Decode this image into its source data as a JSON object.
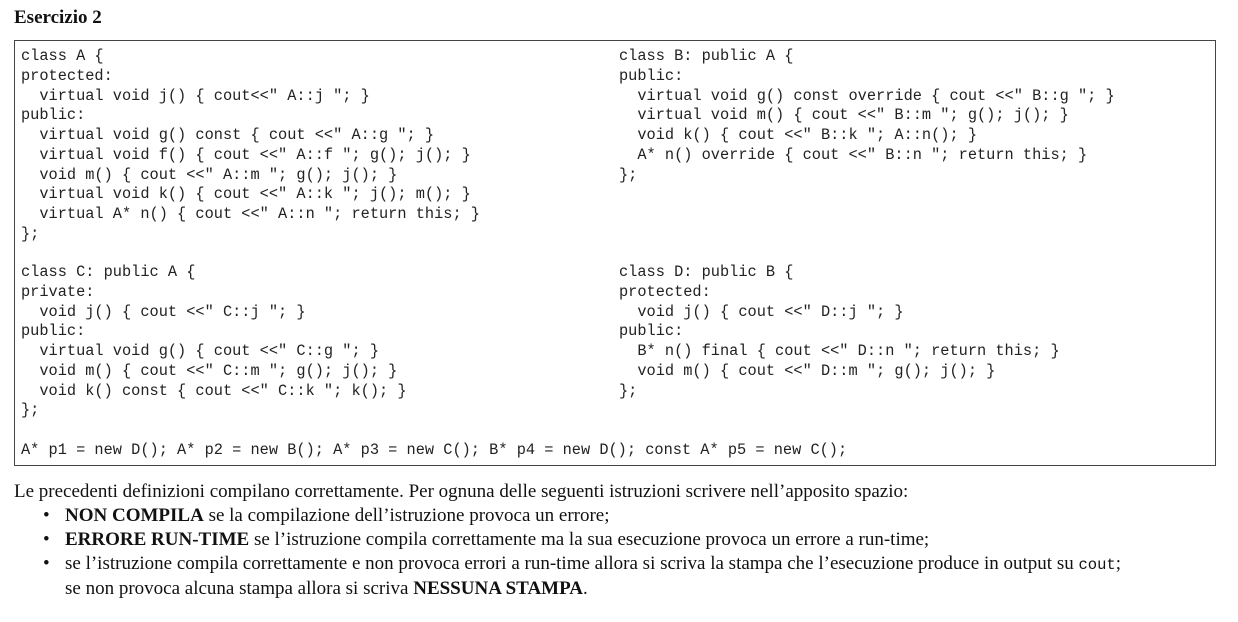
{
  "title": "Esercizio 2",
  "code": {
    "class_a": [
      "class A {",
      "protected:",
      "  virtual void j() { cout<<\" A::j \"; }",
      "public:",
      "  virtual void g() const { cout <<\" A::g \"; }",
      "  virtual void f() { cout <<\" A::f \"; g(); j(); }",
      "  void m() { cout <<\" A::m \"; g(); j(); }",
      "  virtual void k() { cout <<\" A::k \"; j(); m(); }",
      "  virtual A* n() { cout <<\" A::n \"; return this; }",
      "};"
    ],
    "class_b": [
      "class B: public A {",
      "public:",
      "  virtual void g() const override { cout <<\" B::g \"; }",
      "  virtual void m() { cout <<\" B::m \"; g(); j(); }",
      "  void k() { cout <<\" B::k \"; A::n(); }",
      "  A* n() override { cout <<\" B::n \"; return this; }",
      "};"
    ],
    "class_c": [
      "class C: public A {",
      "private:",
      "  void j() { cout <<\" C::j \"; }",
      "public:",
      "  virtual void g() { cout <<\" C::g \"; }",
      "  void m() { cout <<\" C::m \"; g(); j(); }",
      "  void k() const { cout <<\" C::k \"; k(); }",
      "};"
    ],
    "class_d": [
      "class D: public B {",
      "protected:",
      "  void j() { cout <<\" D::j \"; }",
      "public:",
      "  B* n() final { cout <<\" D::n \"; return this; }",
      "  void m() { cout <<\" D::m \"; g(); j(); }",
      "};"
    ],
    "pointers": "A* p1 = new D(); A* p2 = new B(); A* p3 = new C(); B* p4 = new D(); const A* p5 = new C();"
  },
  "description": {
    "intro": "Le precedenti definizioni compilano correttamente. Per ognuna delle seguenti istruzioni scrivere nell’apposito spazio:",
    "bullet_symbol": "•",
    "bullet1_strong": "NON COMPILA",
    "bullet1_text": " se la compilazione dell’istruzione provoca un errore;",
    "bullet2_strong": "ERRORE RUN-TIME",
    "bullet2_text": " se l’istruzione compila correttamente ma la sua esecuzione provoca un errore a run-time;",
    "bullet3_text_a": "se l’istruzione compila correttamente e non provoca errori a run-time allora si scriva la stampa che l’esecuzione produce in output su ",
    "bullet3_code": "cout",
    "bullet3_text_b": ";",
    "bullet3_text_c": "se non provoca alcuna stampa allora si scriva ",
    "bullet3_strong": "NESSUNA STAMPA",
    "bullet3_text_d": "."
  }
}
